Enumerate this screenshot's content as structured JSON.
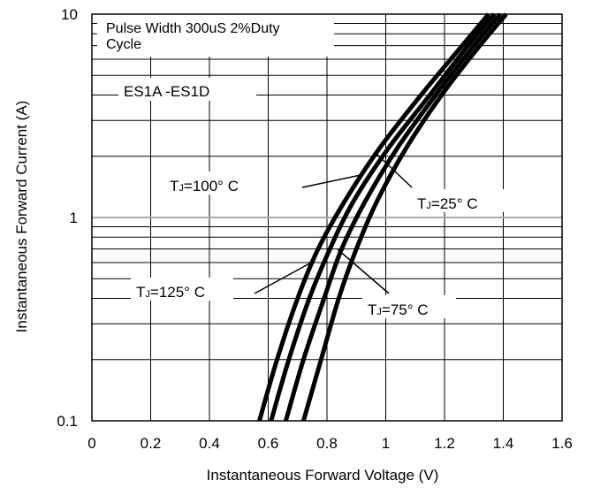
{
  "chart_data": {
    "type": "line",
    "title": "",
    "xlabel": "Instantaneous Forward Voltage (V)",
    "ylabel": "Instantaneous Forward Current (A)",
    "xlim": [
      0,
      1.6
    ],
    "ylim": [
      0.1,
      10
    ],
    "y_scale": "log",
    "grid": true,
    "x_ticks": [
      "0",
      "0.2",
      "0.4",
      "0.6",
      "0.8",
      "1",
      "1.2",
      "1.4",
      "1.6"
    ],
    "y_ticks": [
      "0.1",
      "1",
      "10"
    ],
    "annotations": {
      "condition_line1": "Pulse Width 300uS 2%Duty",
      "condition_line2": "Cycle",
      "part_range": "ES1A -ES1D"
    },
    "series": [
      {
        "name": "TJ=125° C",
        "label_main": "T",
        "label_sub": "J",
        "label_rest": "=125° C",
        "x": [
          0.57,
          0.63,
          0.7,
          0.77,
          0.86,
          0.98,
          1.12,
          1.26,
          1.35
        ],
        "y": [
          0.1,
          0.2,
          0.4,
          0.7,
          1.2,
          2.2,
          4.0,
          7.0,
          10.0
        ]
      },
      {
        "name": "TJ=100° C",
        "label_main": "T",
        "label_sub": "J",
        "label_rest": "=100° C",
        "x": [
          0.61,
          0.67,
          0.74,
          0.81,
          0.89,
          1.01,
          1.15,
          1.28,
          1.37
        ],
        "y": [
          0.1,
          0.2,
          0.4,
          0.7,
          1.2,
          2.2,
          4.0,
          7.0,
          10.0
        ]
      },
      {
        "name": "TJ=75° C",
        "label_main": "T",
        "label_sub": "J",
        "label_rest": "=75° C",
        "x": [
          0.66,
          0.72,
          0.79,
          0.85,
          0.93,
          1.04,
          1.17,
          1.3,
          1.39
        ],
        "y": [
          0.1,
          0.2,
          0.4,
          0.7,
          1.2,
          2.2,
          4.0,
          7.0,
          10.0
        ]
      },
      {
        "name": "TJ=25° C",
        "label_main": "T",
        "label_sub": "J",
        "label_rest": "=25° C",
        "x": [
          0.72,
          0.78,
          0.84,
          0.9,
          0.97,
          1.07,
          1.19,
          1.32,
          1.41
        ],
        "y": [
          0.1,
          0.2,
          0.4,
          0.7,
          1.2,
          2.2,
          4.0,
          7.0,
          10.0
        ]
      }
    ]
  }
}
